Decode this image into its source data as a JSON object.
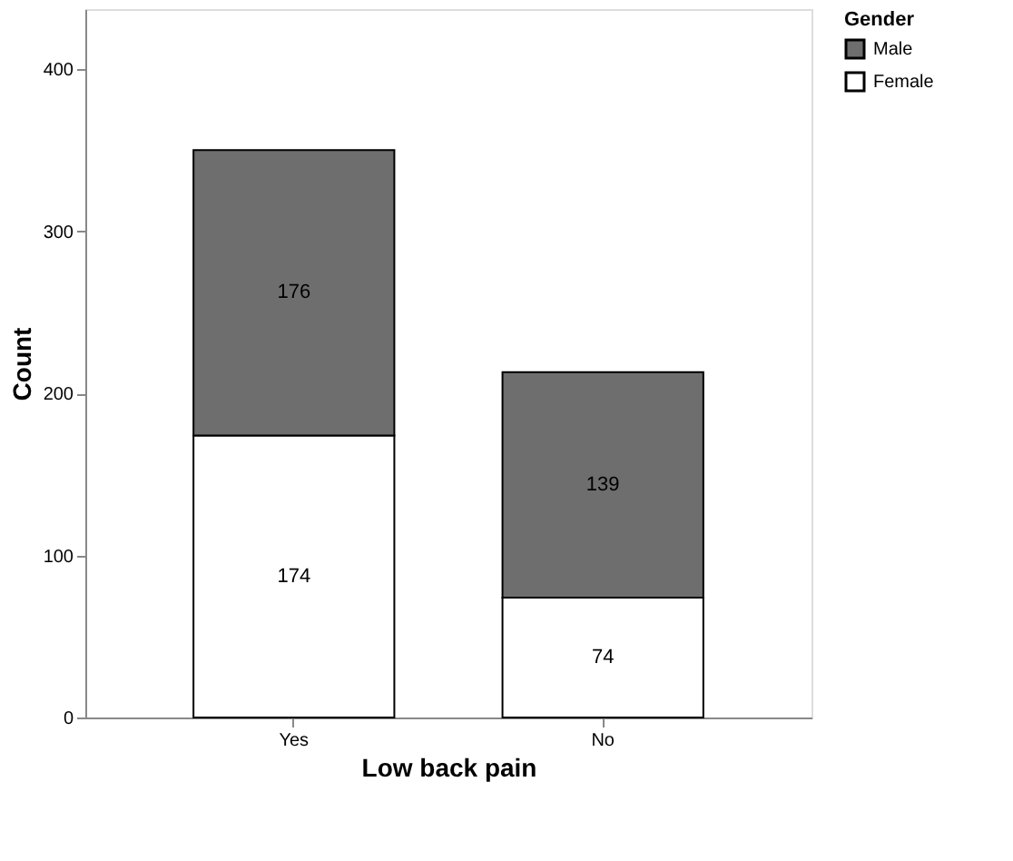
{
  "chart_data": {
    "type": "bar",
    "stacked": true,
    "xlabel": "Low back pain",
    "ylabel": "Count",
    "legend_title": "Gender",
    "legend": "top right",
    "categories": [
      "Yes",
      "No"
    ],
    "series": [
      {
        "name": "Female",
        "color": "#ffffff",
        "values": [
          174,
          74
        ]
      },
      {
        "name": "Male",
        "color": "#6e6e6e",
        "values": [
          176,
          139
        ]
      }
    ],
    "ylim": [
      0,
      437
    ],
    "yticks": [
      0,
      100,
      200,
      300,
      400
    ],
    "data_labels": true,
    "grid": false
  }
}
